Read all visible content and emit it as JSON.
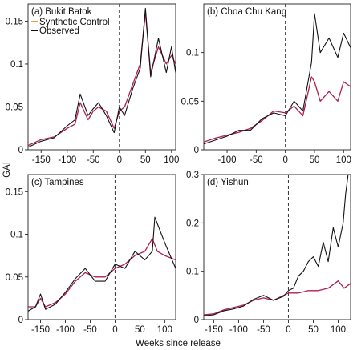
{
  "figure": {
    "ylabel": "GAI",
    "xlabel": "Weeks since release",
    "legend": [
      {
        "name": "Synthetic Control",
        "color": "#E8A33A"
      },
      {
        "name": "Observed",
        "color": "#111111"
      }
    ]
  },
  "chart_data": [
    {
      "type": "line",
      "title": "(a) Bukit Batok",
      "xlim": [
        -175,
        108
      ],
      "ylim": [
        0,
        0.17
      ],
      "xticks": [
        "-150",
        "-100",
        "-50",
        "0",
        "50",
        "100"
      ],
      "yticks": [
        "0",
        "0.05",
        "0.1",
        "0.15"
      ],
      "release_week": 0,
      "series": [
        {
          "name": "Synthetic Control",
          "color": "#b01e4a",
          "x": [
            -175,
            -150,
            -125,
            -100,
            -85,
            -75,
            -60,
            -50,
            -40,
            -25,
            -10,
            0,
            10,
            25,
            40,
            50,
            60,
            75,
            90,
            100,
            108
          ],
          "y": [
            0.005,
            0.012,
            0.015,
            0.025,
            0.03,
            0.055,
            0.035,
            0.045,
            0.05,
            0.045,
            0.025,
            0.045,
            0.05,
            0.075,
            0.1,
            0.16,
            0.09,
            0.12,
            0.1,
            0.11,
            0.1
          ]
        },
        {
          "name": "Observed",
          "color": "#111111",
          "x": [
            -175,
            -150,
            -125,
            -100,
            -85,
            -75,
            -60,
            -50,
            -40,
            -25,
            -10,
            0,
            10,
            25,
            40,
            50,
            60,
            75,
            90,
            100,
            108
          ],
          "y": [
            0.003,
            0.01,
            0.014,
            0.028,
            0.035,
            0.065,
            0.04,
            0.048,
            0.055,
            0.04,
            0.02,
            0.05,
            0.04,
            0.07,
            0.095,
            0.165,
            0.085,
            0.13,
            0.09,
            0.12,
            0.09
          ]
        }
      ]
    },
    {
      "type": "line",
      "title": "(b) Choa Chu Kang",
      "xlim": [
        -140,
        112
      ],
      "ylim": [
        0,
        0.15
      ],
      "xticks": [
        "-100",
        "-50",
        "0",
        "50",
        "100"
      ],
      "yticks": [
        "0",
        "0.05",
        "0.1"
      ],
      "release_week": 0,
      "series": [
        {
          "name": "Synthetic Control",
          "color": "#b01e4a",
          "x": [
            -140,
            -120,
            -100,
            -80,
            -60,
            -40,
            -20,
            0,
            15,
            30,
            45,
            50,
            60,
            75,
            90,
            100,
            112
          ],
          "y": [
            0.008,
            0.012,
            0.015,
            0.018,
            0.022,
            0.03,
            0.04,
            0.038,
            0.045,
            0.035,
            0.075,
            0.07,
            0.05,
            0.06,
            0.05,
            0.07,
            0.065
          ]
        },
        {
          "name": "Observed",
          "color": "#111111",
          "x": [
            -140,
            -120,
            -100,
            -80,
            -60,
            -40,
            -20,
            0,
            15,
            30,
            45,
            50,
            60,
            75,
            90,
            100,
            112
          ],
          "y": [
            0.006,
            0.01,
            0.014,
            0.02,
            0.02,
            0.032,
            0.038,
            0.035,
            0.05,
            0.04,
            0.09,
            0.14,
            0.1,
            0.115,
            0.095,
            0.12,
            0.105
          ]
        }
      ]
    },
    {
      "type": "line",
      "title": "(c) Tampines",
      "xlim": [
        -175,
        122
      ],
      "ylim": [
        0,
        0.17
      ],
      "xticks": [
        "-150",
        "-100",
        "-50",
        "0",
        "50",
        "100"
      ],
      "yticks": [
        "0",
        "0.05",
        "0.1",
        "0.15"
      ],
      "release_week": 0,
      "series": [
        {
          "name": "Synthetic Control",
          "color": "#b01e4a",
          "x": [
            -175,
            -160,
            -150,
            -140,
            -120,
            -100,
            -80,
            -60,
            -40,
            -20,
            0,
            20,
            40,
            60,
            75,
            85,
            100,
            122
          ],
          "y": [
            0.015,
            0.015,
            0.025,
            0.015,
            0.02,
            0.03,
            0.045,
            0.055,
            0.05,
            0.05,
            0.06,
            0.065,
            0.075,
            0.08,
            0.095,
            0.08,
            0.075,
            0.07
          ]
        },
        {
          "name": "Observed",
          "color": "#111111",
          "x": [
            -175,
            -160,
            -150,
            -140,
            -120,
            -100,
            -80,
            -60,
            -40,
            -20,
            0,
            20,
            40,
            60,
            75,
            80,
            100,
            122
          ],
          "y": [
            0.01,
            0.015,
            0.03,
            0.012,
            0.018,
            0.032,
            0.048,
            0.06,
            0.045,
            0.045,
            0.065,
            0.06,
            0.08,
            0.07,
            0.08,
            0.12,
            0.09,
            0.06
          ]
        }
      ]
    },
    {
      "type": "line",
      "title": "(d) Yishun",
      "xlim": [
        -170,
        125
      ],
      "ylim": [
        0,
        0.3
      ],
      "xticks": [
        "-150",
        "-100",
        "-50",
        "0",
        "50",
        "100"
      ],
      "yticks": [
        "0",
        "0.1",
        "0.2",
        "0.3"
      ],
      "release_week": 0,
      "series": [
        {
          "name": "Synthetic Control",
          "color": "#b01e4a",
          "x": [
            -170,
            -150,
            -130,
            -110,
            -90,
            -70,
            -50,
            -30,
            -10,
            0,
            20,
            40,
            60,
            80,
            100,
            112,
            125
          ],
          "y": [
            0.01,
            0.012,
            0.02,
            0.025,
            0.03,
            0.04,
            0.045,
            0.04,
            0.05,
            0.055,
            0.055,
            0.06,
            0.06,
            0.065,
            0.08,
            0.065,
            0.075
          ]
        },
        {
          "name": "Observed",
          "color": "#111111",
          "x": [
            -170,
            -150,
            -130,
            -110,
            -90,
            -70,
            -50,
            -30,
            -10,
            0,
            10,
            20,
            30,
            40,
            50,
            60,
            70,
            80,
            90,
            100,
            110,
            115,
            120,
            125
          ],
          "y": [
            0.008,
            0.01,
            0.018,
            0.022,
            0.028,
            0.042,
            0.05,
            0.04,
            0.048,
            0.06,
            0.065,
            0.09,
            0.1,
            0.12,
            0.13,
            0.11,
            0.16,
            0.12,
            0.19,
            0.15,
            0.2,
            0.26,
            0.3,
            0.32
          ]
        }
      ]
    }
  ]
}
